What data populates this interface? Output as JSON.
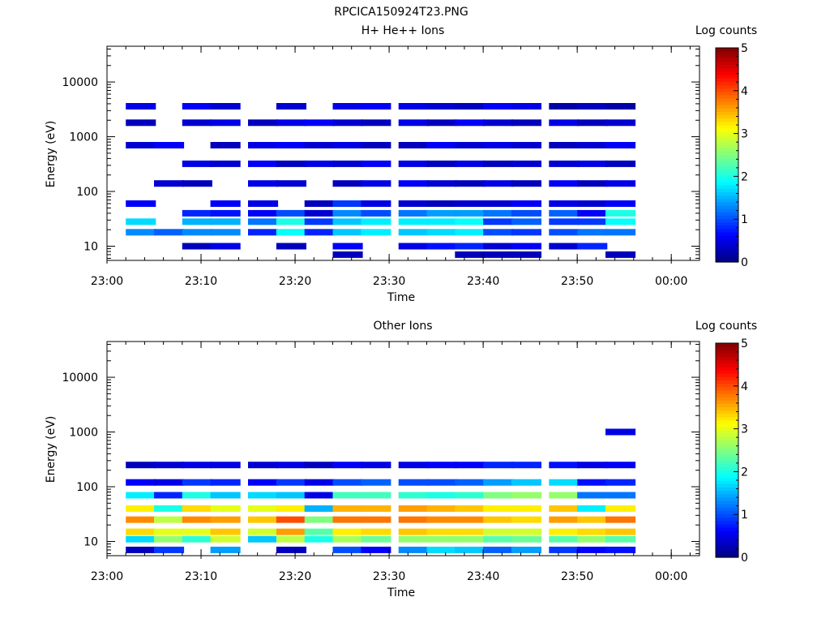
{
  "figure_title": "RPCICA150924T23.PNG",
  "chart_data": [
    {
      "type": "heatmap",
      "title": "H+ He++ Ions",
      "xlabel": "Time",
      "ylabel": "Energy (eV)",
      "colorbar_label": "Log counts",
      "colorbar_ticks": [
        "0",
        "1",
        "2",
        "3",
        "4",
        "5"
      ],
      "colorbar_range": [
        0,
        5
      ],
      "colormap": "jet",
      "y_scale": "log",
      "ylim": [
        5.5,
        45000
      ],
      "xlim": [
        "23:00",
        "00:03"
      ],
      "x_ticks": [
        "23:00",
        "23:10",
        "23:20",
        "23:30",
        "23:40",
        "23:50",
        "00:00"
      ],
      "y_ticks": [
        "10",
        "100",
        "1000",
        "10000"
      ],
      "time_bins_start": [
        "23:02",
        "23:05",
        "23:08",
        "23:11",
        "23:15",
        "23:18",
        "23:21",
        "23:24",
        "23:27",
        "23:31",
        "23:34",
        "23:37",
        "23:40",
        "23:43",
        "23:47",
        "23:50",
        "23:53"
      ],
      "bin_width_min": 3.2,
      "energy_bins_eV": [
        {
          "e": 3600,
          "counts": [
            0.5,
            0,
            0.6,
            0.4,
            0,
            0.4,
            0,
            0.5,
            0.6,
            0.5,
            0.4,
            0.3,
            0.6,
            0.5,
            0.2,
            0.3,
            0.2
          ]
        },
        {
          "e": 1800,
          "counts": [
            0.3,
            0,
            0.4,
            0.5,
            0.3,
            0.5,
            0.6,
            0.4,
            0.3,
            0.5,
            0.3,
            0.6,
            0.4,
            0.3,
            0.5,
            0.3,
            0.4
          ]
        },
        {
          "e": 700,
          "counts": [
            0.4,
            0.6,
            0,
            0.3,
            0.5,
            0.6,
            0.4,
            0.5,
            0.3,
            0.3,
            0.6,
            0.4,
            0.5,
            0.4,
            0.3,
            0.4,
            0.6
          ]
        },
        {
          "e": 320,
          "counts": [
            0,
            0,
            0.5,
            0.4,
            0.6,
            0.3,
            0.5,
            0.4,
            0.6,
            0.5,
            0.3,
            0.5,
            0.3,
            0.4,
            0.4,
            0.5,
            0.3
          ]
        },
        {
          "e": 140,
          "counts": [
            0,
            0.4,
            0.3,
            0,
            0.5,
            0.4,
            0,
            0.3,
            0.5,
            0.6,
            0.4,
            0.3,
            0.5,
            0.3,
            0.6,
            0.3,
            0.5
          ]
        },
        {
          "e": 60,
          "counts": [
            0.6,
            0,
            0,
            0.6,
            0.5,
            0,
            0.3,
            0.9,
            0.5,
            0.4,
            0.3,
            0.4,
            0.4,
            0.6,
            0.5,
            0.4,
            0.6
          ]
        },
        {
          "e": 40,
          "counts": [
            0,
            0,
            0.8,
            0.7,
            0.6,
            1.0,
            0.4,
            1.3,
            1.0,
            1.2,
            1.4,
            1.4,
            1.2,
            1.0,
            1.1,
            0.6,
            2.0
          ]
        },
        {
          "e": 28,
          "counts": [
            1.7,
            0,
            1.5,
            1.5,
            1.2,
            2.0,
            0.9,
            1.6,
            1.8,
            1.8,
            1.8,
            1.9,
            0.9,
            1.1,
            0.9,
            0.9,
            1.9
          ]
        },
        {
          "e": 18,
          "counts": [
            1.3,
            1.1,
            1.3,
            1.3,
            0.8,
            1.9,
            0.8,
            1.6,
            1.8,
            1.6,
            1.7,
            1.8,
            1.0,
            0.9,
            1.0,
            1.2,
            1.2
          ]
        },
        {
          "e": 10,
          "counts": [
            0,
            0,
            0.3,
            0.5,
            0,
            0.3,
            0,
            0.6,
            0,
            0.5,
            0.7,
            0.8,
            0.4,
            0.6,
            0.4,
            0.8,
            0
          ]
        },
        {
          "e": 7,
          "counts": [
            0,
            0,
            0,
            0,
            0,
            0,
            0,
            0.3,
            0,
            0,
            0,
            0.3,
            0.3,
            0.3,
            0,
            0,
            0.3
          ]
        }
      ]
    },
    {
      "type": "heatmap",
      "title": "Other Ions",
      "xlabel": "Time",
      "ylabel": "Energy (eV)",
      "colorbar_label": "Log counts",
      "colorbar_ticks": [
        "0",
        "1",
        "2",
        "3",
        "4",
        "5"
      ],
      "colorbar_range": [
        0,
        5
      ],
      "colormap": "jet",
      "y_scale": "log",
      "ylim": [
        5.5,
        45000
      ],
      "xlim": [
        "23:00",
        "00:03"
      ],
      "x_ticks": [
        "23:00",
        "23:10",
        "23:20",
        "23:30",
        "23:40",
        "23:50",
        "00:00"
      ],
      "y_ticks": [
        "10",
        "100",
        "1000",
        "10000"
      ],
      "time_bins_start": [
        "23:02",
        "23:05",
        "23:08",
        "23:11",
        "23:15",
        "23:18",
        "23:21",
        "23:24",
        "23:27",
        "23:31",
        "23:34",
        "23:37",
        "23:40",
        "23:43",
        "23:47",
        "23:50",
        "23:53"
      ],
      "bin_width_min": 3.2,
      "energy_bins_eV": [
        {
          "e": 1000,
          "counts": [
            0,
            0,
            0,
            0,
            0,
            0,
            0,
            0,
            0,
            0,
            0,
            0,
            0,
            0,
            0,
            0,
            0.5
          ]
        },
        {
          "e": 250,
          "counts": [
            0.3,
            0.4,
            0.5,
            0.5,
            0.4,
            0.5,
            0.3,
            0.6,
            0.5,
            0.5,
            0.6,
            0.6,
            0.8,
            0.8,
            0.7,
            0.5,
            0.6
          ]
        },
        {
          "e": 120,
          "counts": [
            0.6,
            0.5,
            0.9,
            0.8,
            0.6,
            0.9,
            0.5,
            1.0,
            1.1,
            1.0,
            1.0,
            1.1,
            1.4,
            1.6,
            1.7,
            0.7,
            0.8
          ]
        },
        {
          "e": 70,
          "counts": [
            1.8,
            0.8,
            2.0,
            1.6,
            1.7,
            1.6,
            0.5,
            2.2,
            2.2,
            2.1,
            2.0,
            2.1,
            2.5,
            2.6,
            2.6,
            1.2,
            1.2
          ]
        },
        {
          "e": 40,
          "counts": [
            3.2,
            2.0,
            3.3,
            3.0,
            3.0,
            3.2,
            1.5,
            3.5,
            3.5,
            3.6,
            3.5,
            3.4,
            3.2,
            3.2,
            3.4,
            1.8,
            3.2
          ]
        },
        {
          "e": 25,
          "counts": [
            3.7,
            2.8,
            3.7,
            3.6,
            3.4,
            4.0,
            2.5,
            3.8,
            3.8,
            3.8,
            3.7,
            3.7,
            3.4,
            3.3,
            3.6,
            3.4,
            3.8
          ]
        },
        {
          "e": 15,
          "counts": [
            3.3,
            3.0,
            3.0,
            3.4,
            2.9,
            3.6,
            2.3,
            3.2,
            3.3,
            3.4,
            3.3,
            3.3,
            2.9,
            2.9,
            3.2,
            3.3,
            3.4
          ]
        },
        {
          "e": 11,
          "counts": [
            1.7,
            2.6,
            2.1,
            2.9,
            1.6,
            2.8,
            2.0,
            2.7,
            2.4,
            2.6,
            2.6,
            2.6,
            2.3,
            2.4,
            2.3,
            2.6,
            2.3
          ]
        },
        {
          "e": 7,
          "counts": [
            0.3,
            0.9,
            0,
            1.4,
            0,
            0.3,
            0,
            1.0,
            0.6,
            1.3,
            1.7,
            1.6,
            1.1,
            1.4,
            0.9,
            0.6,
            0.7
          ]
        }
      ]
    }
  ]
}
